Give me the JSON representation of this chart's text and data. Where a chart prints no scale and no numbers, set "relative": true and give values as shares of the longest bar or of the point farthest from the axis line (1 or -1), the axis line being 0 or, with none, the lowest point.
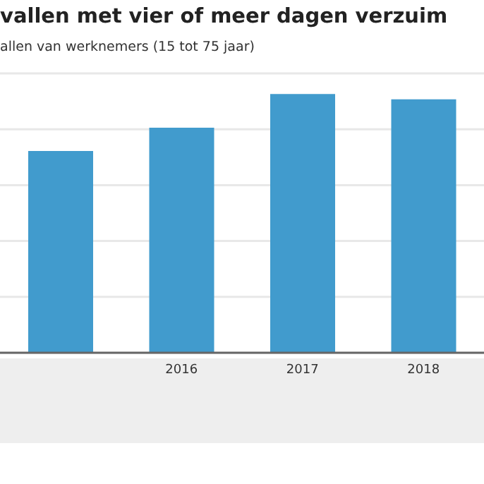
{
  "chart_data": {
    "type": "bar",
    "title": "vallen met vier of meer dagen verzuim",
    "subtitle": "allen van werknemers (15 tot 75 jaar)",
    "categories": [
      null,
      "2016",
      "2017",
      "2018"
    ],
    "values": [
      0.78,
      0.87,
      1,
      0.98
    ],
    "color": "#419bcd",
    "relative": true,
    "grid": "y"
  }
}
